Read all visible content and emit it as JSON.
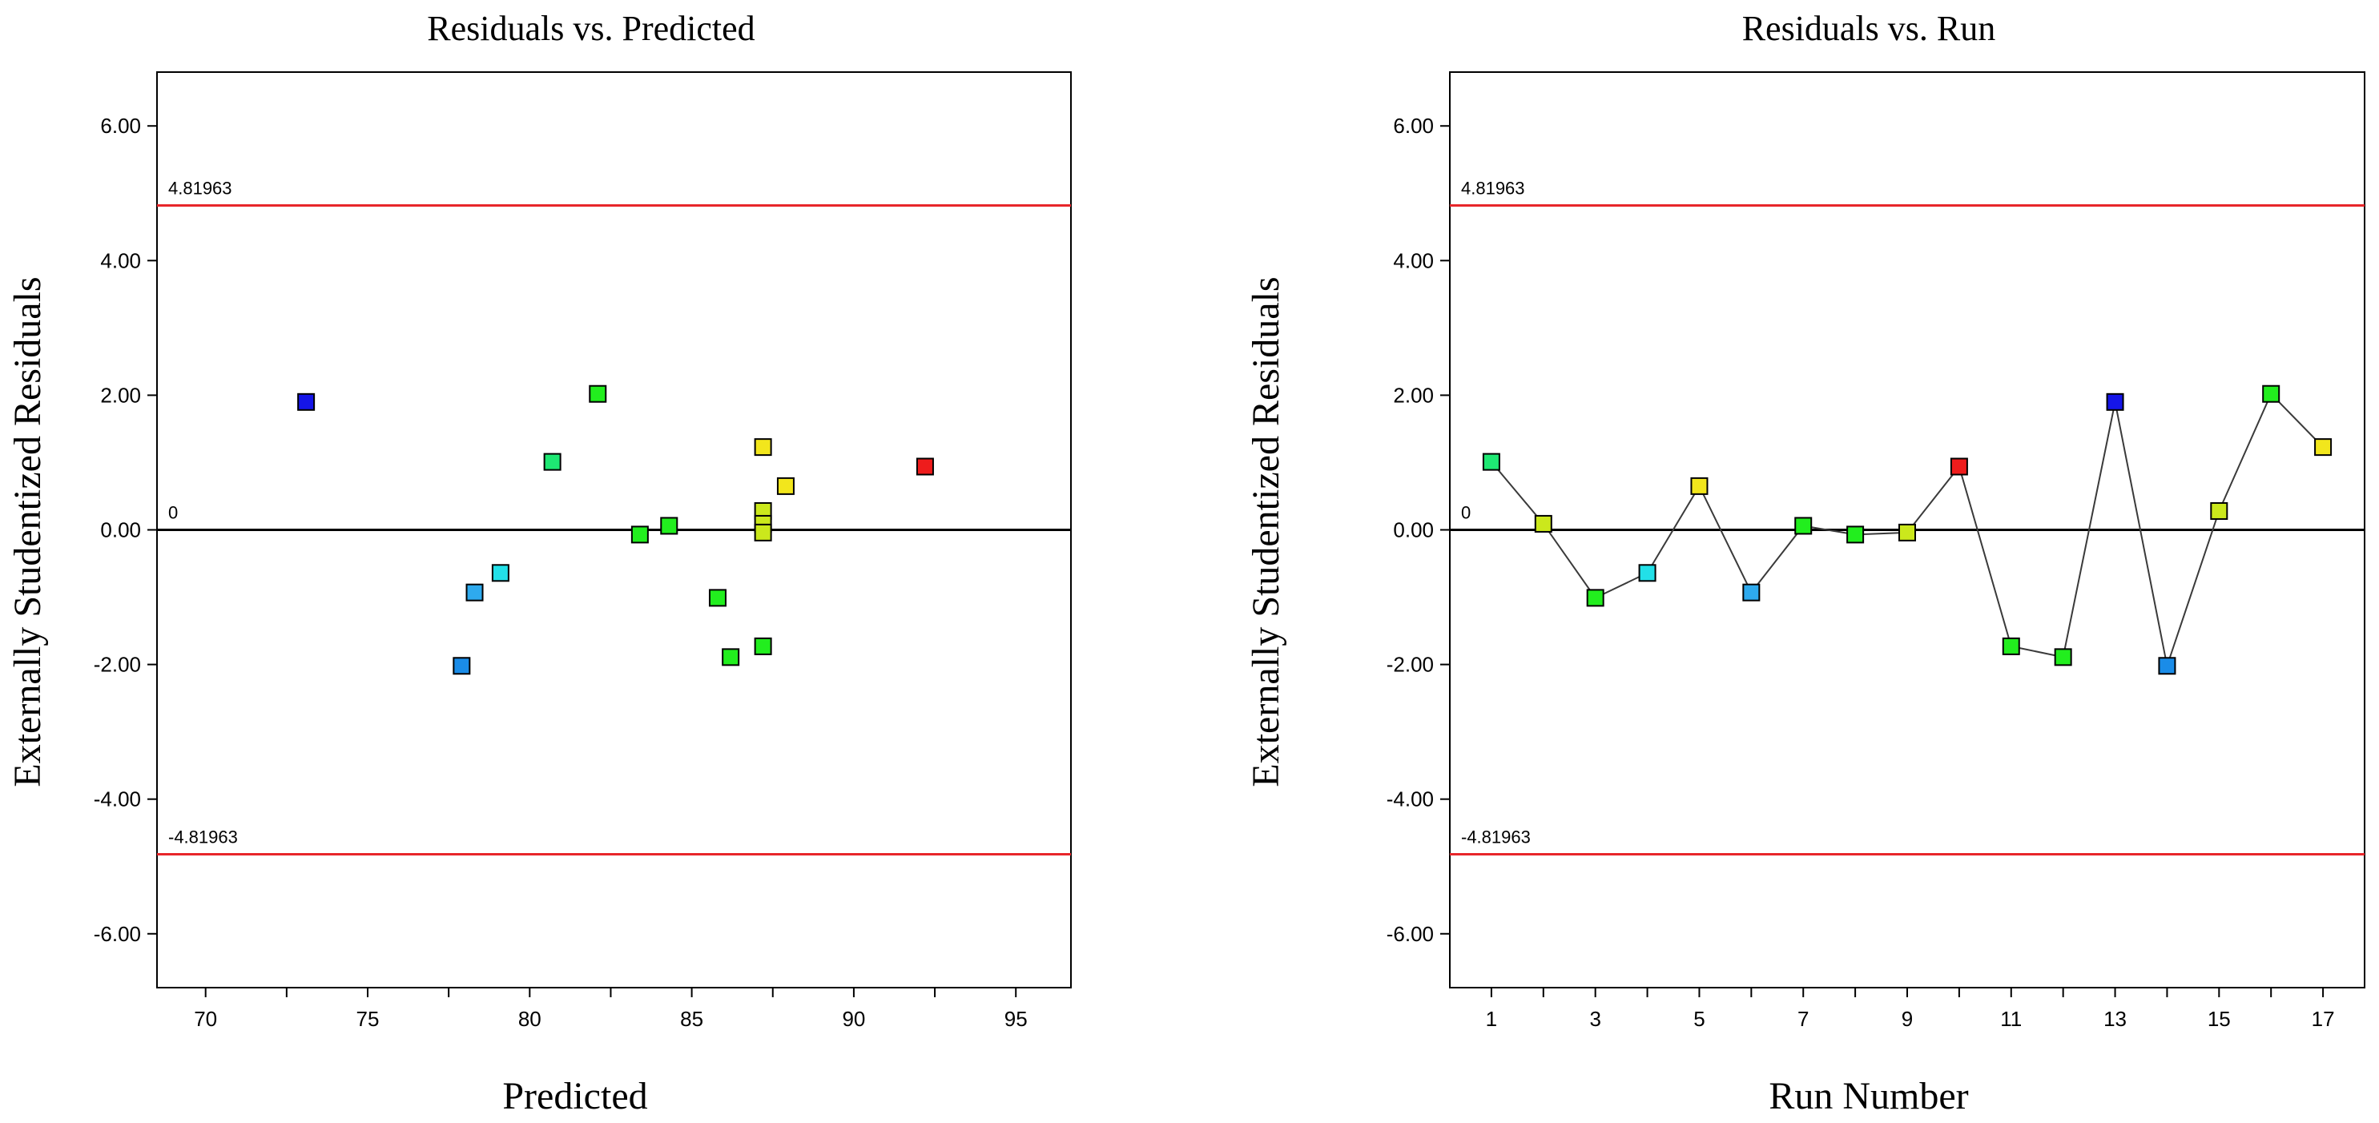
{
  "chart_data": [
    {
      "type": "scatter",
      "title": "Residuals vs. Predicted",
      "xlabel": "Predicted",
      "ylabel": "Externally Studentized Residuals",
      "xlim": [
        68.5,
        96.7
      ],
      "ylim": [
        -6.8,
        6.8
      ],
      "xticks": [
        "70",
        "75",
        "80",
        "85",
        "90",
        "95"
      ],
      "yticks": [
        "6.00",
        "4.00",
        "2.00",
        "0.00",
        "-2.00",
        "-4.00",
        "-6.00"
      ],
      "reference_lines": [
        {
          "value": 4.81963,
          "label": "4.81963",
          "color": "#e8262a"
        },
        {
          "value": 0,
          "label": "0",
          "color": "#000000"
        },
        {
          "value": -4.81963,
          "label": "-4.81963",
          "color": "#e8262a"
        }
      ],
      "points": [
        {
          "x": 73.1,
          "y": 1.9,
          "color": "#1515e8"
        },
        {
          "x": 77.9,
          "y": -2.02,
          "color": "#1a8ce8"
        },
        {
          "x": 78.3,
          "y": -0.93,
          "color": "#2eaaee"
        },
        {
          "x": 79.1,
          "y": -0.64,
          "color": "#22e0e8"
        },
        {
          "x": 80.7,
          "y": 1.01,
          "color": "#1ee873"
        },
        {
          "x": 82.1,
          "y": 2.02,
          "color": "#22ee1e"
        },
        {
          "x": 83.4,
          "y": -0.07,
          "color": "#22ee1e"
        },
        {
          "x": 84.3,
          "y": 0.06,
          "color": "#22ee1e"
        },
        {
          "x": 85.8,
          "y": -1.01,
          "color": "#22ee1e"
        },
        {
          "x": 86.2,
          "y": -1.89,
          "color": "#22ee1e"
        },
        {
          "x": 87.2,
          "y": -1.73,
          "color": "#22ee1e"
        },
        {
          "x": 87.2,
          "y": 1.23,
          "color": "#f2e61c"
        },
        {
          "x": 87.2,
          "y": 0.28,
          "color": "#cbe81c"
        },
        {
          "x": 87.2,
          "y": 0.09,
          "color": "#cbe81c"
        },
        {
          "x": 87.2,
          "y": -0.04,
          "color": "#cbe81c"
        },
        {
          "x": 87.9,
          "y": 0.65,
          "color": "#f2e61c"
        },
        {
          "x": 92.2,
          "y": 0.94,
          "color": "#ee1c1c"
        }
      ]
    },
    {
      "type": "line",
      "title": "Residuals vs. Run",
      "xlabel": "Run Number",
      "ylabel": "Externally Studentized Residuals",
      "xlim": [
        0.2,
        17.8
      ],
      "ylim": [
        -6.8,
        6.8
      ],
      "xticks": [
        "1",
        "3",
        "5",
        "7",
        "9",
        "11",
        "13",
        "15",
        "17"
      ],
      "yticks": [
        "6.00",
        "4.00",
        "2.00",
        "0.00",
        "-2.00",
        "-4.00",
        "-6.00"
      ],
      "reference_lines": [
        {
          "value": 4.81963,
          "label": "4.81963",
          "color": "#e8262a"
        },
        {
          "value": 0,
          "label": "0",
          "color": "#000000"
        },
        {
          "value": -4.81963,
          "label": "-4.81963",
          "color": "#e8262a"
        }
      ],
      "points": [
        {
          "x": 1,
          "y": 1.01,
          "color": "#1ee873"
        },
        {
          "x": 2,
          "y": 0.09,
          "color": "#cbe81c"
        },
        {
          "x": 3,
          "y": -1.01,
          "color": "#22ee1e"
        },
        {
          "x": 4,
          "y": -0.64,
          "color": "#22e0e8"
        },
        {
          "x": 5,
          "y": 0.65,
          "color": "#f2e61c"
        },
        {
          "x": 6,
          "y": -0.93,
          "color": "#2eaaee"
        },
        {
          "x": 7,
          "y": 0.06,
          "color": "#22ee1e"
        },
        {
          "x": 8,
          "y": -0.07,
          "color": "#22ee1e"
        },
        {
          "x": 9,
          "y": -0.04,
          "color": "#cbe81c"
        },
        {
          "x": 10,
          "y": 0.94,
          "color": "#ee1c1c"
        },
        {
          "x": 11,
          "y": -1.73,
          "color": "#22ee1e"
        },
        {
          "x": 12,
          "y": -1.89,
          "color": "#22ee1e"
        },
        {
          "x": 13,
          "y": 1.9,
          "color": "#1515e8"
        },
        {
          "x": 14,
          "y": -2.02,
          "color": "#1a8ce8"
        },
        {
          "x": 15,
          "y": 0.28,
          "color": "#cbe81c"
        },
        {
          "x": 16,
          "y": 2.02,
          "color": "#22ee1e"
        },
        {
          "x": 17,
          "y": 1.23,
          "color": "#f2e61c"
        }
      ]
    }
  ]
}
